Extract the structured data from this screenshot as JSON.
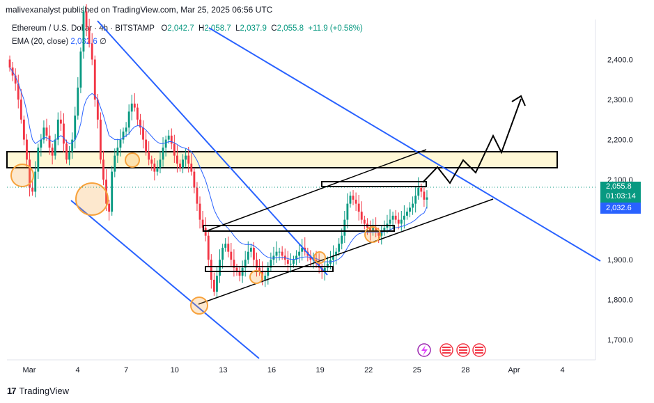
{
  "header": {
    "publisher": "malivexanalyst published on TradingView.com, Mar 25, 2025 06:56 UTC",
    "symbol": "Ethereum / U.S. Dollar · 4h · BITSTAMP",
    "ohlc": {
      "o_label": "O",
      "o": "2,042.7",
      "h_label": "H",
      "h": "2,058.7",
      "l_label": "L",
      "l": "2,037.9",
      "c_label": "C",
      "c": "2,055.8",
      "change": "+11.9 (+0.58%)"
    },
    "ema_label": "EMA (20, close)",
    "ema_value": "2,032.6",
    "ema_extra": "∅"
  },
  "footer": {
    "logo_text": "TradingView"
  },
  "chart_data": {
    "type": "candlestick",
    "ylim": [
      1650,
      2500
    ],
    "y_ticks": [
      1700,
      1800,
      1900,
      2000,
      2100,
      2200,
      2300,
      2400
    ],
    "y_tick_labels": [
      "1,700.0",
      "1,800.0",
      "1,900.0",
      "",
      "2,100.0",
      "2,200.0",
      "2,300.0",
      "2,400.0"
    ],
    "x_ticks": [
      "Mar",
      "4",
      "7",
      "10",
      "13",
      "16",
      "19",
      "22",
      "25",
      "28",
      "Apr",
      "4"
    ],
    "last_price": "2,055.8",
    "countdown": "01:03:14",
    "ema_last": "2,032.6",
    "colors": {
      "up": "#089981",
      "down": "#f23645",
      "ema": "#2962ff",
      "trendline": "#2962ff",
      "zone": "#fff8d6",
      "circle": "#f7a23c"
    },
    "candles_close": [
      2380,
      2360,
      2340,
      2300,
      2250,
      2200,
      2150,
      2080,
      2070,
      2120,
      2180,
      2200,
      2230,
      2210,
      2180,
      2160,
      2200,
      2250,
      2240,
      2190,
      2150,
      2170,
      2200,
      2260,
      2330,
      2420,
      2520,
      2480,
      2440,
      2400,
      2300,
      2250,
      2150,
      2100,
      2040,
      2020,
      2120,
      2160,
      2180,
      2200,
      2220,
      2230,
      2270,
      2290,
      2280,
      2250,
      2230,
      2200,
      2170,
      2150,
      2140,
      2120,
      2130,
      2150,
      2180,
      2200,
      2210,
      2190,
      2160,
      2140,
      2130,
      2150,
      2160,
      2140,
      2120,
      2080,
      2040,
      2000,
      1980,
      1960,
      1900,
      1850,
      1820,
      1860,
      1900,
      1930,
      1940,
      1920,
      1900,
      1880,
      1870,
      1860,
      1880,
      1900,
      1920,
      1930,
      1900,
      1880,
      1870,
      1850,
      1860,
      1880,
      1900,
      1910,
      1920,
      1920,
      1910,
      1900,
      1890,
      1890,
      1900,
      1910,
      1920,
      1930,
      1920,
      1910,
      1900,
      1900,
      1890,
      1880,
      1870,
      1880,
      1890,
      1900,
      1910,
      1920,
      1940,
      1960,
      2000,
      2040,
      2060,
      2050,
      2040,
      2020,
      2000,
      1990,
      1980,
      1970,
      1980,
      1970,
      1960,
      1970,
      1980,
      1990,
      2000,
      2010,
      2000,
      1990,
      2000,
      2010,
      2020,
      2030,
      2040,
      2060,
      2080,
      2070,
      2050,
      2055.8
    ],
    "ema_points": [
      2380,
      2370,
      2358,
      2340,
      2320,
      2300,
      2270,
      2230,
      2200,
      2190,
      2195,
      2200,
      2205,
      2205,
      2200,
      2195,
      2198,
      2205,
      2210,
      2205,
      2195,
      2190,
      2192,
      2200,
      2215,
      2240,
      2280,
      2300,
      2310,
      2315,
      2310,
      2300,
      2280,
      2260,
      2235,
      2210,
      2205,
      2200,
      2200,
      2200,
      2205,
      2210,
      2215,
      2225,
      2232,
      2235,
      2234,
      2230,
      2224,
      2216,
      2208,
      2200,
      2194,
      2190,
      2190,
      2192,
      2195,
      2195,
      2192,
      2188,
      2183,
      2180,
      2178,
      2175,
      2170,
      2160,
      2148,
      2132,
      2115,
      2098,
      2075,
      2050,
      2025,
      2010,
      1998,
      1990,
      1985,
      1978,
      1970,
      1960,
      1952,
      1944,
      1940,
      1938,
      1938,
      1938,
      1935,
      1930,
      1924,
      1916,
      1910,
      1906,
      1904,
      1904,
      1905,
      1906,
      1906,
      1905,
      1903,
      1901,
      1901,
      1902,
      1904,
      1906,
      1907,
      1907,
      1906,
      1905,
      1903,
      1900,
      1897,
      1895,
      1895,
      1895,
      1896,
      1898,
      1902,
      1908,
      1918,
      1930,
      1942,
      1952,
      1960,
      1965,
      1967,
      1968,
      1968,
      1968,
      1969,
      1969,
      1969,
      1969,
      1970,
      1972,
      1975,
      1978,
      1980,
      1981,
      1983,
      1985,
      1988,
      1991,
      1995,
      2000,
      2007,
      2013,
      2017,
      2032.6
    ]
  }
}
